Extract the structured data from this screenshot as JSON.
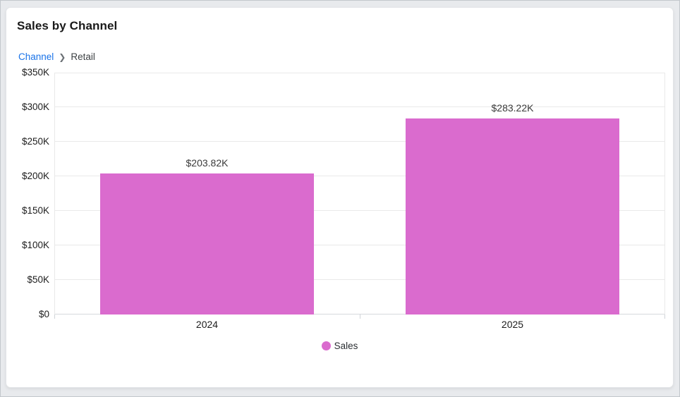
{
  "header": {
    "title": "Sales by Channel",
    "breadcrumb": {
      "parent": "Channel",
      "separator": "❯",
      "current": "Retail"
    }
  },
  "colors": {
    "bar": "#da6bce",
    "breadcrumb_link": "#1a73e8",
    "page_background": "#e8eaed",
    "card_background": "#ffffff"
  },
  "chart_data": {
    "type": "bar",
    "title": "Sales by Channel",
    "categories": [
      "2024",
      "2025"
    ],
    "series": [
      {
        "name": "Sales",
        "values": [
          203.82,
          283.22
        ],
        "color": "#da6bce"
      }
    ],
    "value_labels": [
      "$203.82K",
      "$283.22K"
    ],
    "value_unit": "K (thousand USD)",
    "xlabel": "",
    "ylabel": "",
    "ylim": [
      0,
      350
    ],
    "yticks": [
      0,
      50,
      100,
      150,
      200,
      250,
      300,
      350
    ],
    "ytick_labels": [
      "$0",
      "$50K",
      "$100K",
      "$150K",
      "$200K",
      "$250K",
      "$300K",
      "$350K"
    ],
    "grid": true,
    "bar_width_fraction": 0.7,
    "legend_position": "bottom",
    "legend": [
      {
        "label": "Sales",
        "color": "#da6bce"
      }
    ]
  }
}
